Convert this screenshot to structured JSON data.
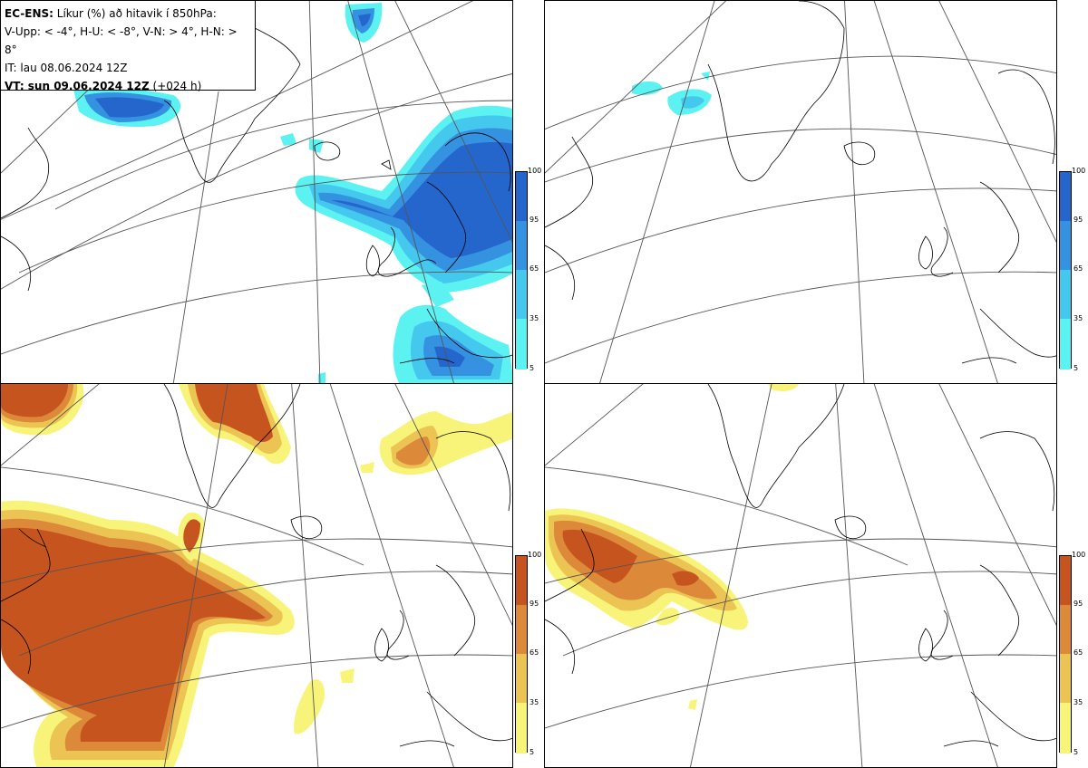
{
  "header": {
    "line1_bold": "EC-ENS:",
    "line1_rest": " Líkur (%) að hitavik í 850hPa:",
    "line2": "V-Upp: < -4°, H-U: < -8°, V-N: > 4°, H-N: > 8°",
    "line3": "IT: lau 08.06.2024 12Z",
    "line4_bold": "VT: sun 09.06.2024 12Z",
    "line4_rest": " (+024 h)"
  },
  "colorbar_ticks": [
    "100",
    "95",
    "65",
    "35",
    "5"
  ],
  "colors": {
    "blue_5": "#5cf2f2",
    "blue_35": "#45c8ee",
    "blue_65": "#3592e0",
    "blue_95": "#2466cc",
    "orange_5": "#f8f47a",
    "orange_35": "#ecc453",
    "orange_65": "#dc8a3a",
    "orange_95": "#c6541e"
  },
  "panels": [
    {
      "id": "V-Upp",
      "palette": "blue"
    },
    {
      "id": "H-U",
      "palette": "blue"
    },
    {
      "id": "V-N",
      "palette": "orange"
    },
    {
      "id": "H-N",
      "palette": "orange"
    }
  ]
}
